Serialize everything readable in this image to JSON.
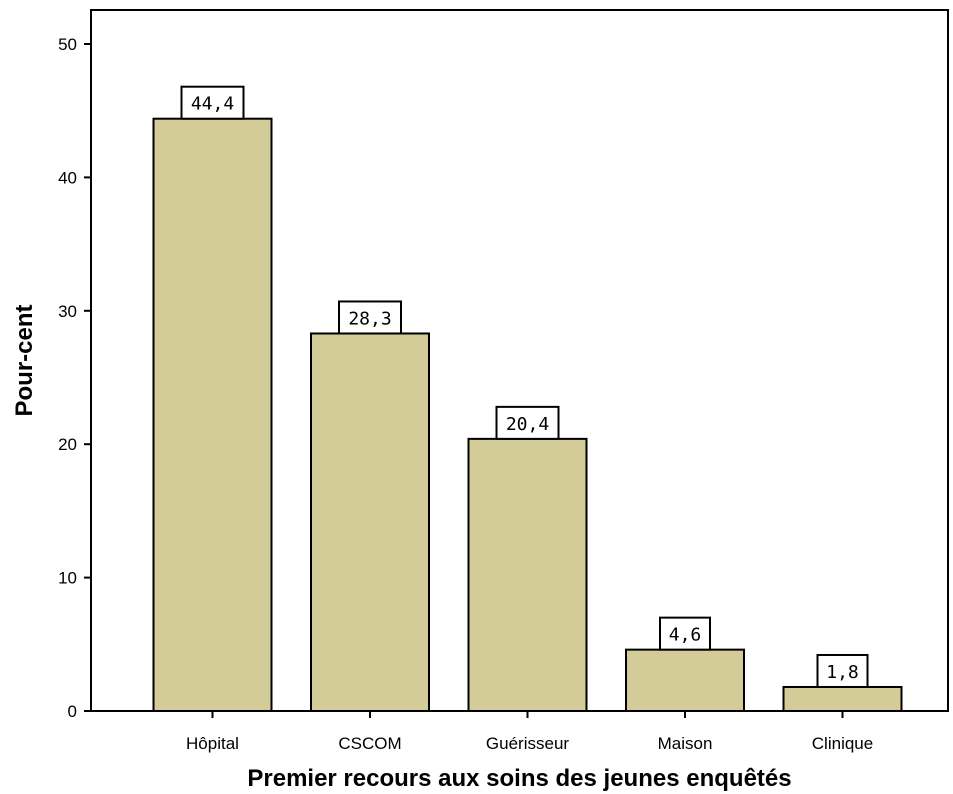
{
  "chart_data": {
    "type": "bar",
    "categories": [
      "Hôpital",
      "CSCOM",
      "Guérisseur",
      "Maison",
      "Clinique"
    ],
    "values": [
      44.4,
      28.3,
      20.4,
      4.6,
      1.8
    ],
    "data_labels": [
      "44,4",
      "28,3",
      "20,4",
      "4,6",
      "1,8"
    ],
    "xlabel": "Premier recours aux soins des jeunes enquêtés",
    "ylabel": "Pour-cent",
    "ylim": [
      0,
      50
    ],
    "yticks": [
      0,
      10,
      20,
      30,
      40,
      50
    ],
    "grid": false,
    "bar_color": "#d3cc98",
    "edge_color": "#000000"
  }
}
